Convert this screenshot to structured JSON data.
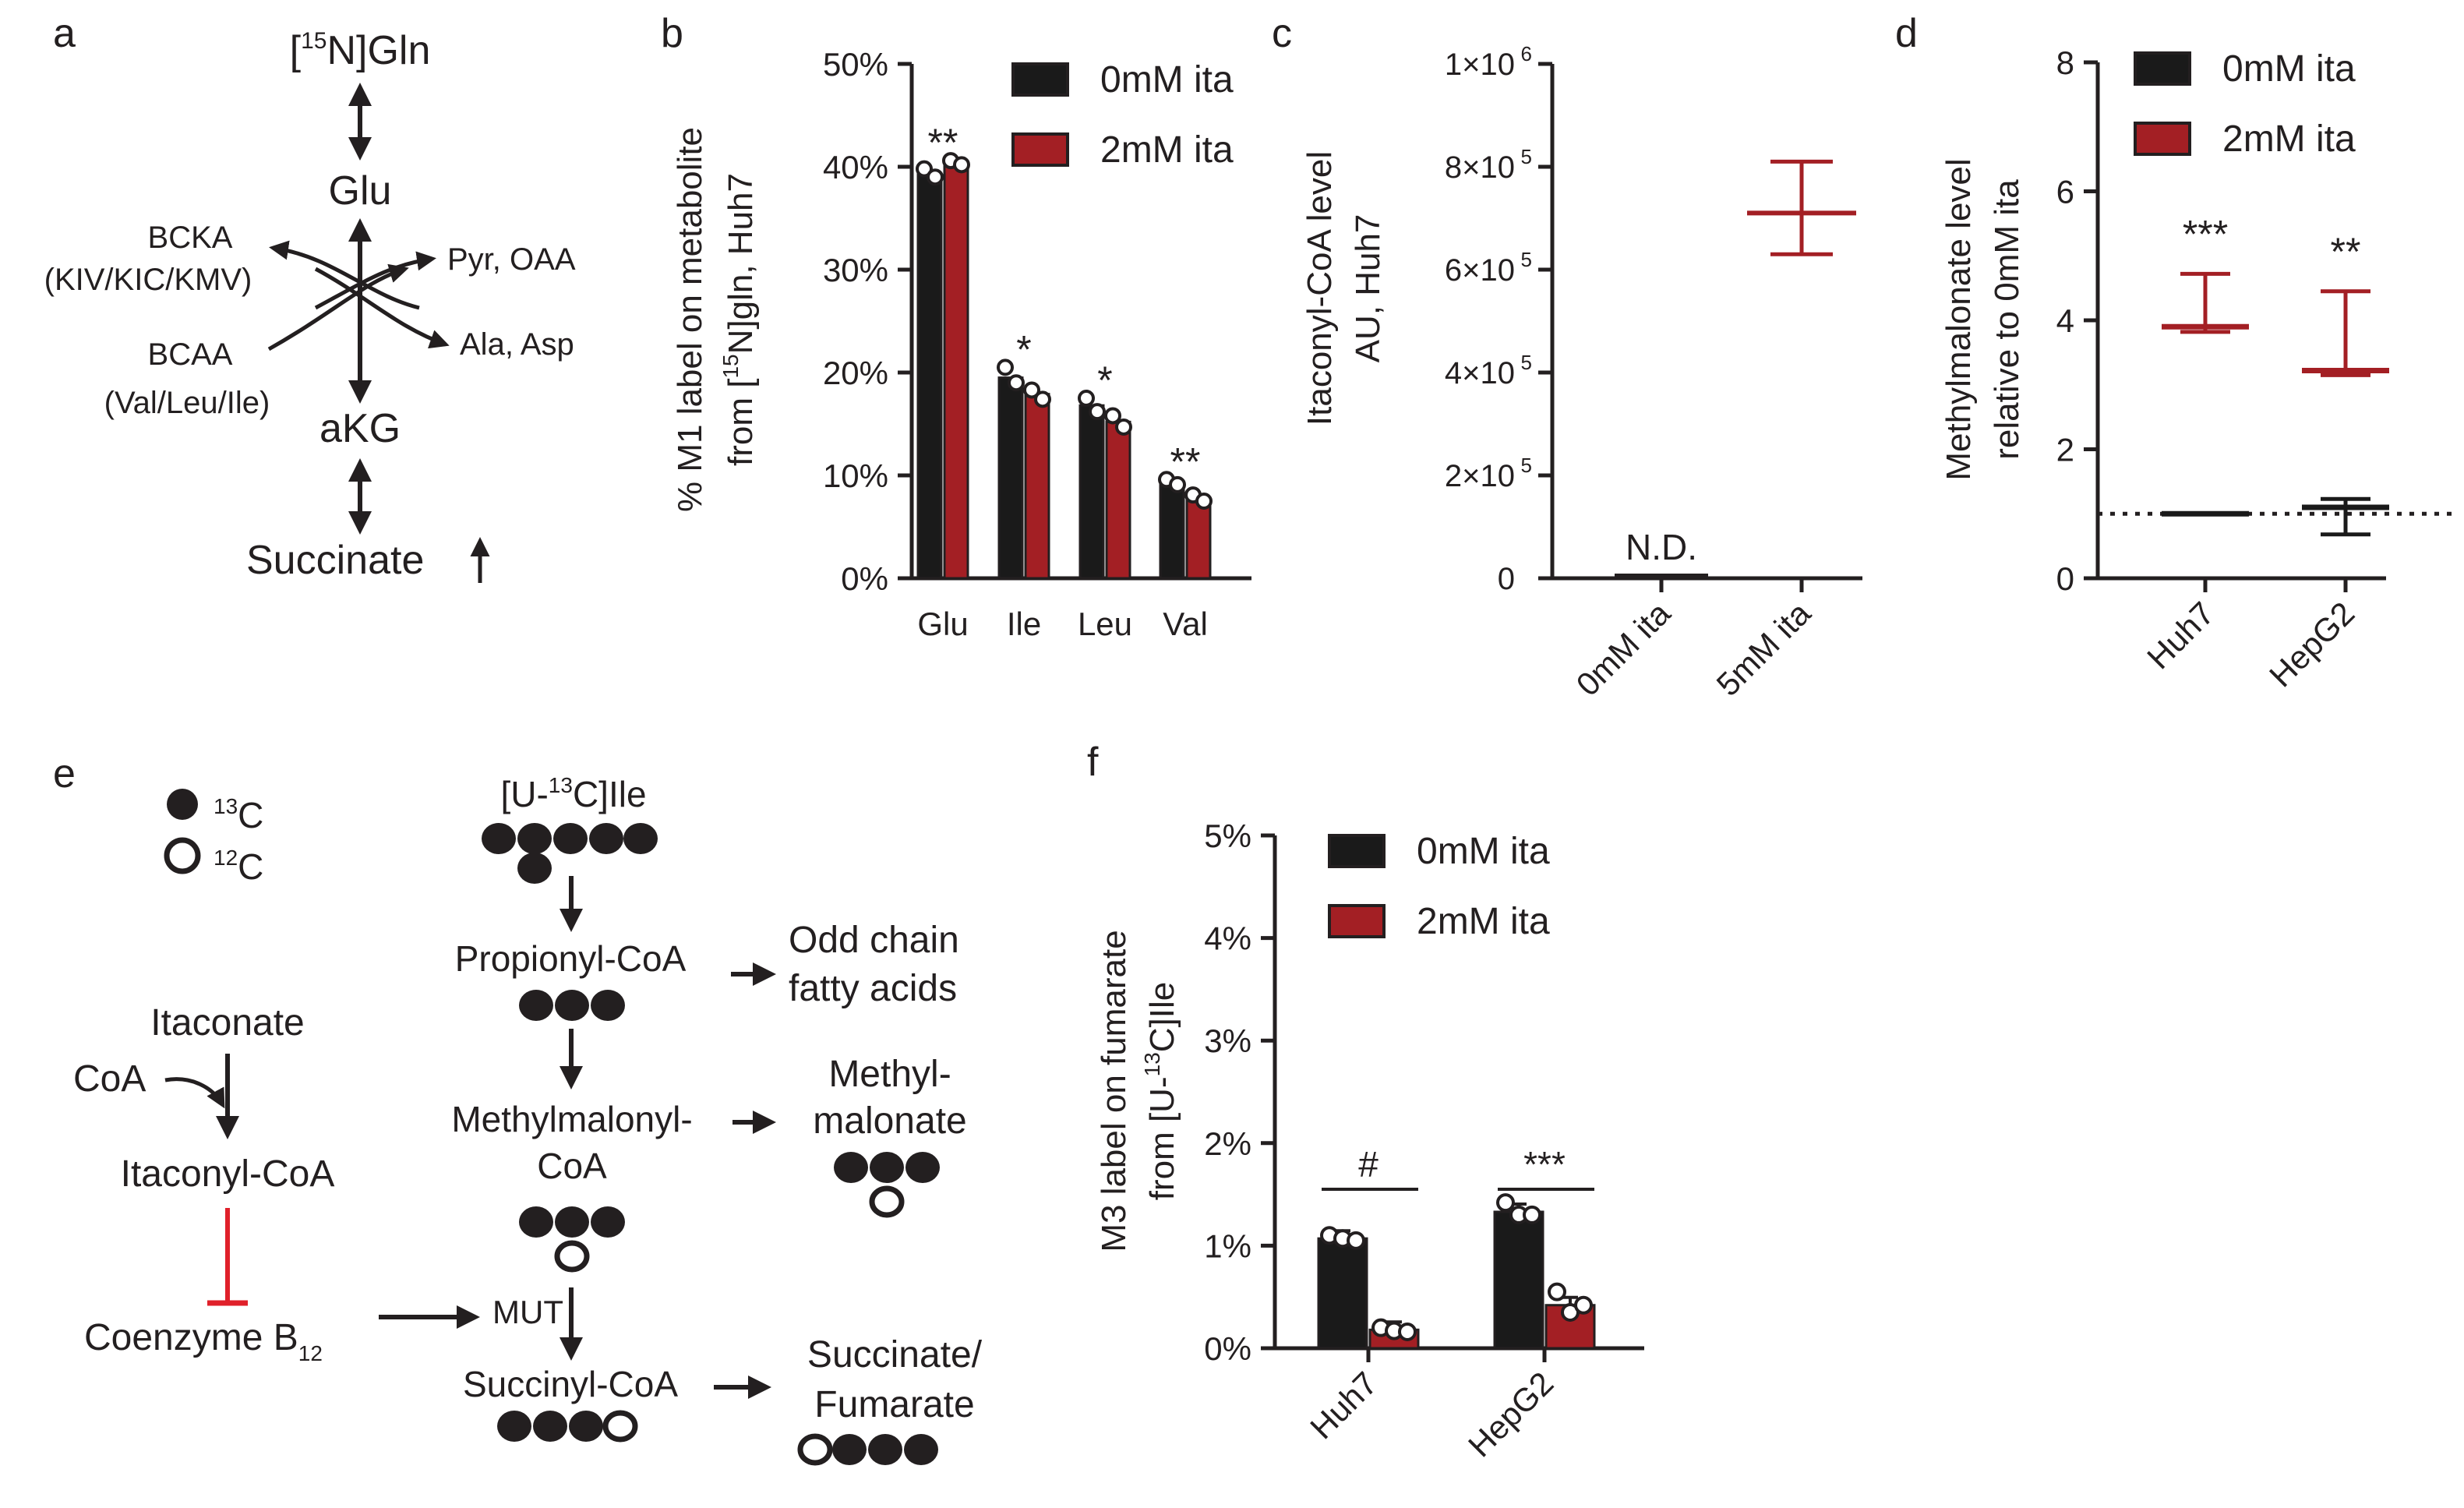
{
  "colors": {
    "black": "#1a1a1a",
    "red": "#a31f24",
    "inhibit": "#e0202a",
    "ink": "#231f20",
    "white": "#ffffff"
  },
  "panels": {
    "a": "a",
    "b": "b",
    "c": "c",
    "d": "d",
    "e": "e",
    "f": "f"
  },
  "pathway_a": {
    "gln_pre": "[",
    "gln_sup": "15",
    "gln_post": "N]Gln",
    "glu": "Glu",
    "akg": "aKG",
    "succinate": "Succinate",
    "bcka": "BCKA",
    "bcka_sub": "(KIV/KIC/KMV)",
    "bcaa": "BCAA",
    "bcaa_sub": "(Val/Leu/Ile)",
    "pyr_oaa": "Pyr, OAA",
    "ala_asp": "Ala, Asp"
  },
  "pathway_e": {
    "legend_13c_sup": "13",
    "legend_13c": "C",
    "legend_12c_sup": "12",
    "legend_12c": "C",
    "ile_pre": "[U-",
    "ile_sup": "13",
    "ile_post": "C]Ile",
    "propionyl": "Propionyl-CoA",
    "odd_chain_1": "Odd chain",
    "odd_chain_2": "fatty acids",
    "methylmalonyl_1": "Methylmalonyl-",
    "methylmalonyl_2": "CoA",
    "methylmalonate_1": "Methyl-",
    "methylmalonate_2": "malonate",
    "mut": "MUT",
    "succinyl": "Succinyl-CoA",
    "succ_fum_1": "Succinate/",
    "succ_fum_2": "Fumarate",
    "itaconate": "Itaconate",
    "coa": "CoA",
    "itaconyl": "Itaconyl-CoA",
    "coenzyme": "Coenzyme B",
    "coenzyme_sub": "12"
  },
  "chart_data": [
    {
      "panel": "b",
      "type": "bar",
      "categories": [
        "Glu",
        "Ile",
        "Leu",
        "Val"
      ],
      "series": [
        {
          "name": "0mM ita",
          "values": [
            39.3,
            19.5,
            16.8,
            9.3
          ],
          "points": [
            [
              39.8,
              39.0
            ],
            [
              20.5,
              19.0
            ],
            [
              17.5,
              16.2
            ],
            [
              9.6,
              9.1
            ]
          ]
        },
        {
          "name": "2mM ita",
          "values": [
            40.4,
            17.9,
            15.2,
            7.7
          ],
          "points": [
            [
              40.6,
              40.2
            ],
            [
              18.3,
              17.4
            ],
            [
              15.8,
              14.7
            ],
            [
              8.1,
              7.5
            ]
          ]
        }
      ],
      "significance": [
        "**",
        "*",
        "*",
        "**"
      ],
      "ylabel_pre": "% M1 label on metabolite",
      "ylabel_2a": "from [",
      "ylabel_2sup": "15",
      "ylabel_2b": "N]gln, Huh7",
      "ylim": [
        0,
        50
      ],
      "yticks": [
        {
          "v": 0,
          "label": "0%"
        },
        {
          "v": 10,
          "label": "10%"
        },
        {
          "v": 20,
          "label": "20%"
        },
        {
          "v": 30,
          "label": "30%"
        },
        {
          "v": 40,
          "label": "40%"
        },
        {
          "v": 50,
          "label": "50%"
        }
      ],
      "legend": [
        "0mM ita",
        "2mM ita"
      ]
    },
    {
      "panel": "c",
      "type": "scatter",
      "categories": [
        "0mM ita",
        "5mM ita"
      ],
      "means": [
        0,
        710000
      ],
      "upper": [
        0,
        810000
      ],
      "lower": [
        0,
        630000
      ],
      "annotation": "N.D.",
      "ylabel_1": "Itaconyl-CoA level",
      "ylabel_2": "AU, Huh7",
      "ylim": [
        0,
        1000000
      ],
      "yticks": [
        {
          "v": 0,
          "m": "0",
          "e": ""
        },
        {
          "v": 200000,
          "m": "2×10",
          "e": "5"
        },
        {
          "v": 400000,
          "m": "4×10",
          "e": "5"
        },
        {
          "v": 600000,
          "m": "6×10",
          "e": "5"
        },
        {
          "v": 800000,
          "m": "8×10",
          "e": "5"
        },
        {
          "v": 1000000,
          "m": "1×10",
          "e": "6"
        }
      ]
    },
    {
      "panel": "d",
      "type": "scatter",
      "categories": [
        "Huh7",
        "HepG2"
      ],
      "series": [
        {
          "name": "0mM ita",
          "means": [
            1.0,
            1.1
          ],
          "upper": [
            1.0,
            1.23
          ],
          "lower": [
            1.0,
            0.68
          ]
        },
        {
          "name": "2mM ita",
          "means": [
            3.9,
            3.22
          ],
          "upper": [
            4.72,
            4.45
          ],
          "lower": [
            3.82,
            3.15
          ]
        }
      ],
      "significance": [
        "***",
        "**"
      ],
      "reference_line": 1,
      "ylabel_1": "Methylmalonate level",
      "ylabel_2": "relative to 0mM ita",
      "ylim": [
        0,
        8
      ],
      "yticks": [
        {
          "v": 0,
          "label": "0"
        },
        {
          "v": 2,
          "label": "2"
        },
        {
          "v": 4,
          "label": "4"
        },
        {
          "v": 6,
          "label": "6"
        },
        {
          "v": 8,
          "label": "8"
        }
      ],
      "legend": [
        "0mM ita",
        "2mM ita"
      ]
    },
    {
      "panel": "f",
      "type": "bar",
      "categories": [
        "Huh7",
        "HepG2"
      ],
      "series": [
        {
          "name": "0mM ita",
          "values": [
            1.07,
            1.33
          ],
          "points": [
            [
              1.1,
              1.07,
              1.05
            ],
            [
              1.42,
              1.3,
              1.3
            ]
          ]
        },
        {
          "name": "2mM ita",
          "values": [
            0.18,
            0.42
          ],
          "points": [
            [
              0.2,
              0.17,
              0.16
            ],
            [
              0.55,
              0.35,
              0.42
            ]
          ]
        }
      ],
      "significance": [
        "#",
        "***"
      ],
      "ylabel_1": "M3 label on fumarate",
      "ylabel_2a": "from [U-",
      "ylabel_2sup": "13",
      "ylabel_2b": "C]Ile",
      "ylim": [
        0,
        5
      ],
      "yticks": [
        {
          "v": 0,
          "label": "0%"
        },
        {
          "v": 1,
          "label": "1%"
        },
        {
          "v": 2,
          "label": "2%"
        },
        {
          "v": 3,
          "label": "3%"
        },
        {
          "v": 4,
          "label": "4%"
        },
        {
          "v": 5,
          "label": "5%"
        }
      ],
      "legend": [
        "0mM ita",
        "2mM ita"
      ]
    }
  ]
}
